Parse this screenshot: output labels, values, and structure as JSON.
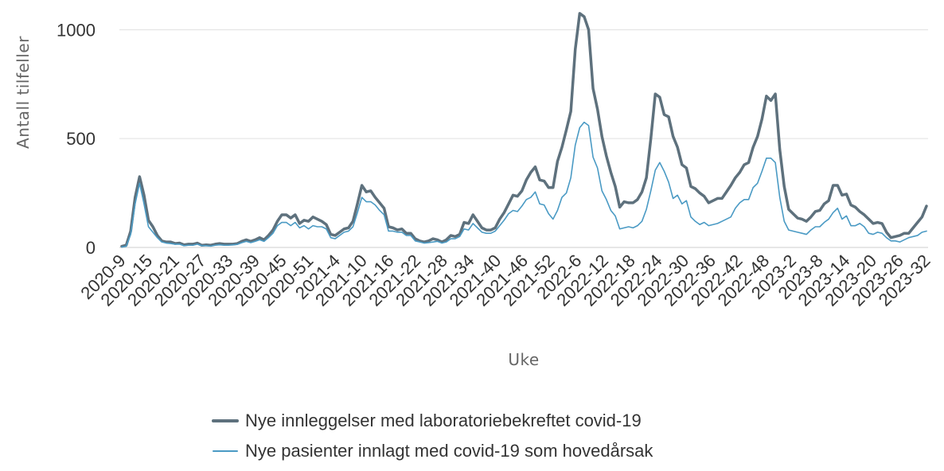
{
  "chart_data": {
    "type": "line",
    "xlabel": "Uke",
    "ylabel": "Antall tilfeller",
    "ylim": [
      0,
      1100
    ],
    "yticks": [
      0,
      500,
      1000
    ],
    "grid": true,
    "legend_position": "bottom",
    "x_tick_labels": [
      "2020-9",
      "2020-15",
      "2020-21",
      "2020-27",
      "2020-33",
      "2020-39",
      "2020-45",
      "2020-51",
      "2021-4",
      "2021-10",
      "2021-16",
      "2021-22",
      "2021-28",
      "2021-34",
      "2021-40",
      "2021-46",
      "2021-52",
      "2022-6",
      "2022-12",
      "2022-18",
      "2022-24",
      "2022-30",
      "2022-36",
      "2022-42",
      "2022-48",
      "2023-2",
      "2023-8",
      "2023-14",
      "2023-20",
      "2023-26",
      "2023-32"
    ],
    "series": [
      {
        "name": "Nye innleggelser med laboratoriebekreftet covid-19",
        "color": "#5e717d",
        "values": [
          5,
          10,
          75,
          230,
          325,
          240,
          125,
          95,
          55,
          30,
          25,
          25,
          18,
          20,
          12,
          15,
          15,
          20,
          10,
          12,
          10,
          15,
          18,
          15,
          15,
          15,
          18,
          28,
          35,
          28,
          35,
          45,
          35,
          55,
          80,
          120,
          150,
          150,
          135,
          150,
          110,
          125,
          120,
          140,
          130,
          120,
          105,
          60,
          55,
          70,
          85,
          90,
          120,
          200,
          285,
          255,
          260,
          230,
          205,
          180,
          95,
          90,
          80,
          85,
          65,
          65,
          40,
          30,
          25,
          30,
          40,
          35,
          25,
          35,
          55,
          50,
          60,
          115,
          110,
          150,
          120,
          90,
          80,
          80,
          90,
          130,
          160,
          200,
          240,
          235,
          260,
          310,
          345,
          370,
          310,
          305,
          275,
          275,
          395,
          460,
          540,
          625,
          910,
          1075,
          1060,
          1000,
          730,
          635,
          510,
          420,
          345,
          280,
          185,
          210,
          205,
          205,
          220,
          255,
          320,
          500,
          705,
          690,
          610,
          600,
          510,
          460,
          380,
          365,
          280,
          270,
          250,
          235,
          205,
          215,
          225,
          225,
          255,
          285,
          320,
          345,
          380,
          390,
          460,
          510,
          590,
          695,
          675,
          705,
          450,
          280,
          175,
          155,
          135,
          130,
          120,
          140,
          165,
          170,
          200,
          215,
          285,
          285,
          240,
          245,
          195,
          185,
          165,
          150,
          130,
          110,
          115,
          110,
          70,
          45,
          50,
          55,
          65,
          65,
          90,
          115,
          140,
          190
        ]
      },
      {
        "name": "Nye pasienter innlagt med covid-19 som hovedårsak",
        "color": "#4a9ac4",
        "values": [
          2,
          5,
          60,
          200,
          295,
          200,
          95,
          70,
          45,
          25,
          20,
          18,
          15,
          15,
          8,
          10,
          10,
          15,
          8,
          8,
          6,
          10,
          12,
          10,
          10,
          12,
          14,
          22,
          28,
          22,
          28,
          35,
          28,
          45,
          65,
          100,
          115,
          115,
          100,
          115,
          90,
          100,
          85,
          100,
          95,
          95,
          85,
          45,
          40,
          55,
          70,
          75,
          95,
          160,
          230,
          210,
          210,
          195,
          170,
          150,
          75,
          75,
          70,
          70,
          55,
          55,
          30,
          25,
          20,
          22,
          25,
          28,
          20,
          25,
          40,
          40,
          50,
          85,
          80,
          110,
          90,
          70,
          65,
          65,
          75,
          100,
          125,
          155,
          170,
          165,
          190,
          220,
          230,
          255,
          200,
          195,
          155,
          130,
          170,
          230,
          250,
          320,
          470,
          550,
          575,
          560,
          415,
          365,
          260,
          220,
          170,
          145,
          85,
          90,
          95,
          90,
          100,
          120,
          175,
          260,
          355,
          390,
          350,
          300,
          225,
          240,
          200,
          215,
          140,
          120,
          105,
          115,
          100,
          105,
          110,
          120,
          130,
          140,
          180,
          205,
          220,
          220,
          275,
          295,
          350,
          410,
          410,
          390,
          230,
          120,
          80,
          75,
          70,
          65,
          60,
          80,
          95,
          95,
          115,
          130,
          160,
          180,
          130,
          145,
          100,
          100,
          110,
          95,
          65,
          60,
          70,
          65,
          45,
          30,
          30,
          25,
          35,
          45,
          50,
          55,
          70,
          75
        ]
      }
    ]
  }
}
